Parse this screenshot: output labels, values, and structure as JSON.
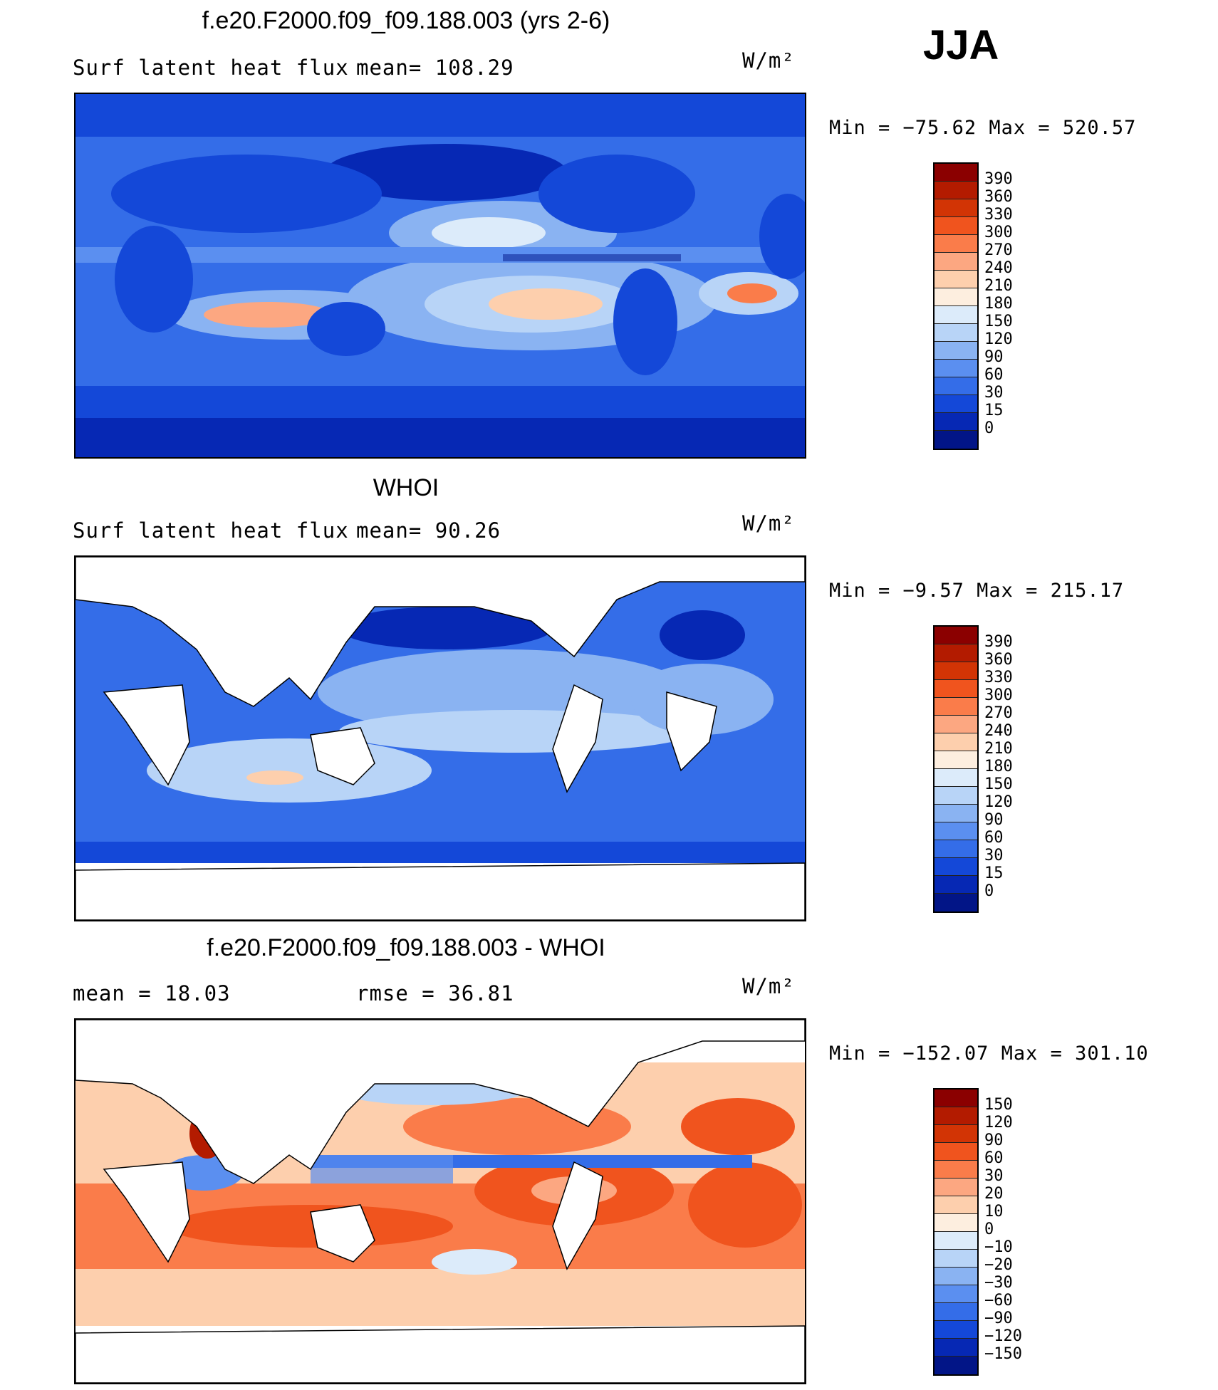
{
  "season": "JJA",
  "chart_data": [
    {
      "type": "heatmap",
      "title": "f.e20.F2000.f09_f09.188.003 (yrs 2-6)",
      "variable": "Surf latent heat flux",
      "mean_label": "mean=",
      "mean": "108.29",
      "units": "W/m²",
      "min_label": "Min =",
      "min": "−75.62",
      "max_label": "Max =",
      "max": "520.57",
      "colorbar_levels": [
        "390",
        "360",
        "330",
        "300",
        "270",
        "240",
        "210",
        "180",
        "150",
        "120",
        "90",
        "60",
        "30",
        "15",
        "0"
      ],
      "colorbar_colors": [
        "#8b0000",
        "#b31b00",
        "#d23405",
        "#f0541e",
        "#fa7c4a",
        "#fca781",
        "#fdcfad",
        "#fdeedf",
        "#dcebfa",
        "#b8d4f7",
        "#8ab3f2",
        "#5b8ff0",
        "#346de8",
        "#1448d8",
        "#0628b4",
        "#021587"
      ]
    },
    {
      "type": "heatmap",
      "title": "WHOI",
      "variable": "Surf latent heat flux",
      "mean_label": "mean=",
      "mean": "90.26",
      "units": "W/m²",
      "min_label": "Min =",
      "min": "−9.57",
      "max_label": "Max =",
      "max": "215.17",
      "colorbar_levels": [
        "390",
        "360",
        "330",
        "300",
        "270",
        "240",
        "210",
        "180",
        "150",
        "120",
        "90",
        "60",
        "30",
        "15",
        "0"
      ],
      "colorbar_colors": [
        "#8b0000",
        "#b31b00",
        "#d23405",
        "#f0541e",
        "#fa7c4a",
        "#fca781",
        "#fdcfad",
        "#fdeedf",
        "#dcebfa",
        "#b8d4f7",
        "#8ab3f2",
        "#5b8ff0",
        "#346de8",
        "#1448d8",
        "#0628b4",
        "#021587"
      ]
    },
    {
      "type": "heatmap",
      "title": "f.e20.F2000.f09_f09.188.003 - WHOI",
      "mean_label": "mean =",
      "mean": "18.03",
      "rmse_label": "rmse =",
      "rmse": "36.81",
      "units": "W/m²",
      "min_label": "Min =",
      "min": "−152.07",
      "max_label": "Max =",
      "max": "301.10",
      "colorbar_levels": [
        "150",
        "120",
        "90",
        "60",
        "30",
        "20",
        "10",
        "0",
        "−10",
        "−20",
        "−30",
        "−60",
        "−90",
        "−120",
        "−150"
      ],
      "colorbar_colors": [
        "#8b0000",
        "#b31b00",
        "#d23405",
        "#f0541e",
        "#fa7c4a",
        "#fca781",
        "#fdcfad",
        "#fdeedf",
        "#dcebfa",
        "#b8d4f7",
        "#8ab3f2",
        "#5b8ff0",
        "#346de8",
        "#1448d8",
        "#0628b4",
        "#021587"
      ]
    }
  ]
}
